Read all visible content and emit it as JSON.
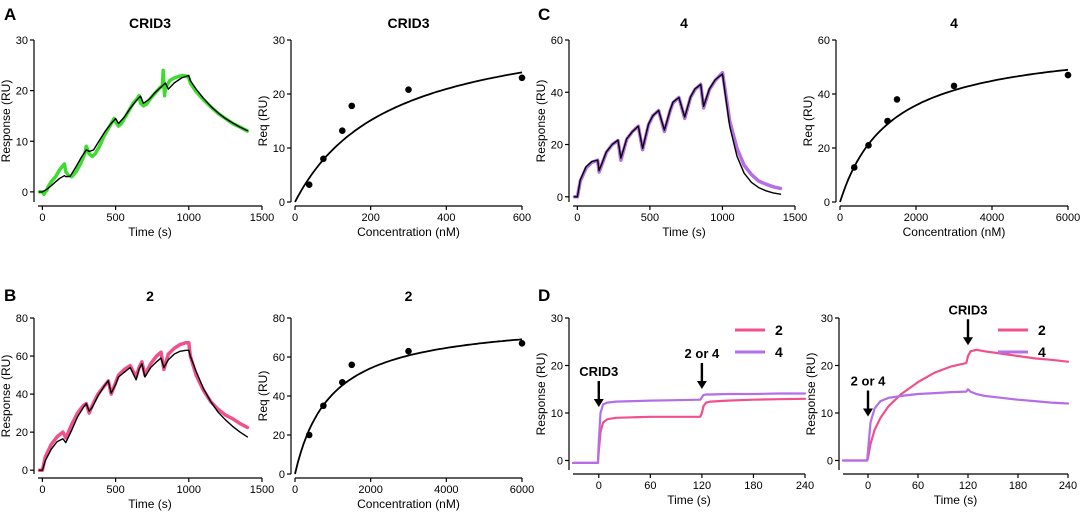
{
  "panel_letters": [
    "A",
    "B",
    "C",
    "D"
  ],
  "chart_data": [
    {
      "id": "A1",
      "type": "line",
      "panel": "A",
      "title": "CRID3",
      "xlabel": "Time (s)",
      "ylabel": "Response (RU)",
      "xlim": [
        -30,
        1500
      ],
      "ylim": [
        -2,
        30
      ],
      "xticks": [
        0,
        500,
        1000,
        1500
      ],
      "yticks": [
        0,
        10,
        20,
        30
      ],
      "series": [
        {
          "name": "data",
          "color": "#3ddc2e",
          "style": "thick",
          "x": [
            -20,
            0,
            10,
            20,
            30,
            40,
            60,
            90,
            120,
            150,
            160,
            180,
            200,
            230,
            260,
            290,
            300,
            320,
            340,
            360,
            390,
            420,
            450,
            480,
            490,
            500,
            520,
            540,
            560,
            590,
            620,
            650,
            660,
            670,
            690,
            710,
            740,
            770,
            800,
            820,
            825,
            830,
            835,
            840,
            870,
            900,
            930,
            960,
            990,
            1000,
            1010,
            1050,
            1100,
            1150,
            1200,
            1250,
            1300,
            1350,
            1400
          ],
          "y": [
            0,
            0,
            -0.5,
            0,
            0.3,
            1,
            2,
            3,
            4.5,
            5.5,
            4,
            3.2,
            3,
            4,
            5.5,
            7.5,
            9,
            7.5,
            7,
            7.5,
            9,
            11,
            12.5,
            14,
            14.5,
            13.8,
            13,
            13.5,
            14.5,
            16,
            17.5,
            18.5,
            19,
            17.5,
            17,
            17.3,
            18.5,
            19.5,
            20.5,
            21,
            24,
            21,
            19,
            20.5,
            22,
            22.5,
            22.8,
            23,
            22.8,
            22.5,
            21.5,
            19.8,
            18.2,
            16.8,
            15.5,
            14.5,
            13.5,
            12.8,
            12
          ]
        },
        {
          "name": "fit",
          "color": "#000000",
          "style": "thin",
          "x": [
            -20,
            0,
            30,
            60,
            90,
            120,
            150,
            160,
            190,
            230,
            270,
            300,
            320,
            350,
            390,
            430,
            470,
            500,
            520,
            560,
            600,
            640,
            670,
            690,
            730,
            770,
            810,
            840,
            860,
            900,
            950,
            1000,
            1010,
            1050,
            1100,
            1150,
            1200,
            1250,
            1300,
            1350,
            1400
          ],
          "y": [
            0,
            0,
            0.5,
            1.2,
            2,
            2.7,
            3.2,
            3,
            3.1,
            5,
            7,
            8.3,
            8,
            8.3,
            10.2,
            12,
            13.5,
            14.5,
            13.5,
            14.8,
            16.5,
            18,
            18.9,
            17.5,
            18.3,
            19.6,
            20.7,
            21.5,
            20.3,
            21.5,
            22.5,
            23,
            22,
            20.3,
            18.5,
            16.9,
            15.6,
            14.5,
            13.6,
            12.8,
            12.1
          ]
        }
      ]
    },
    {
      "id": "A2",
      "type": "scatter",
      "panel": "A",
      "title": "CRID3",
      "xlabel": "Concentration (nM)",
      "ylabel": "Req (RU)",
      "xlim": [
        0,
        600
      ],
      "ylim": [
        0,
        30
      ],
      "xticks": [
        0,
        200,
        400,
        600
      ],
      "yticks": [
        0,
        10,
        20,
        30
      ],
      "points": {
        "x": [
          37.5,
          75,
          125,
          150,
          300,
          600
        ],
        "y": [
          3.2,
          8,
          13.2,
          17.8,
          20.8,
          23
        ]
      },
      "fit": {
        "model": "steady-state",
        "Rmax": 34,
        "KD": 250
      }
    },
    {
      "id": "C1",
      "type": "line",
      "panel": "C",
      "title": "4",
      "xlabel": "Time (s)",
      "ylabel": "Response (RU)",
      "xlim": [
        -30,
        1500
      ],
      "ylim": [
        -2,
        60
      ],
      "xticks": [
        0,
        500,
        1000,
        1500
      ],
      "yticks": [
        0,
        20,
        40,
        60
      ],
      "series": [
        {
          "name": "data",
          "color": "#b36ee8",
          "style": "thick",
          "x": [
            -20,
            0,
            20,
            60,
            100,
            140,
            150,
            200,
            240,
            280,
            300,
            340,
            380,
            420,
            450,
            490,
            520,
            560,
            600,
            640,
            660,
            700,
            740,
            780,
            810,
            850,
            870,
            910,
            950,
            1000,
            1010,
            1050,
            1100,
            1150,
            1200,
            1250,
            1300,
            1350,
            1400
          ],
          "y": [
            0,
            0,
            6,
            11,
            13.2,
            14,
            9.5,
            17,
            20,
            21.5,
            14,
            22,
            25,
            27,
            18,
            27.5,
            31,
            33,
            25,
            33,
            36,
            38,
            30,
            38,
            41,
            43,
            34,
            41,
            44.5,
            47.5,
            44,
            29,
            18.5,
            12,
            8.5,
            6,
            4.8,
            3.8,
            3.2
          ]
        },
        {
          "name": "fit",
          "color": "#000000",
          "style": "thin",
          "x": [
            -20,
            0,
            20,
            60,
            100,
            140,
            150,
            200,
            240,
            280,
            300,
            340,
            380,
            420,
            450,
            490,
            520,
            560,
            600,
            640,
            660,
            700,
            740,
            780,
            810,
            850,
            870,
            910,
            950,
            1000,
            1010,
            1050,
            1100,
            1150,
            1200,
            1250,
            1300,
            1350,
            1400
          ],
          "y": [
            0,
            0,
            6.5,
            11.5,
            13.5,
            14,
            10,
            17.2,
            20,
            21.7,
            14.8,
            22.2,
            25,
            27,
            18.5,
            27.8,
            31,
            33,
            25.5,
            33.3,
            36.3,
            38,
            30.5,
            38.2,
            41.3,
            43,
            34.6,
            41.3,
            44.8,
            47,
            43,
            27,
            15.5,
            9,
            5.5,
            3.5,
            2.3,
            1.5,
            1
          ]
        }
      ]
    },
    {
      "id": "C2",
      "type": "scatter",
      "panel": "C",
      "title": "4",
      "xlabel": "Concentration (nM)",
      "ylabel": "Req (RU)",
      "xlim": [
        0,
        6000
      ],
      "ylim": [
        0,
        60
      ],
      "xticks": [
        0,
        2000,
        4000,
        6000
      ],
      "yticks": [
        0,
        20,
        40,
        60
      ],
      "points": {
        "x": [
          375,
          750,
          1250,
          1500,
          3000,
          6000
        ],
        "y": [
          12.8,
          21,
          30,
          38,
          43,
          47
        ]
      },
      "fit": {
        "model": "steady-state",
        "Rmax": 60,
        "KD": 1350
      }
    },
    {
      "id": "B1",
      "type": "line",
      "panel": "B",
      "title": "2",
      "xlabel": "Time (s)",
      "ylabel": "Response (RU)",
      "xlim": [
        -30,
        1500
      ],
      "ylim": [
        -2,
        80
      ],
      "xticks": [
        0,
        500,
        1000,
        1500
      ],
      "yticks": [
        0,
        20,
        40,
        60,
        80
      ],
      "series": [
        {
          "name": "data",
          "color": "#f0508c",
          "style": "thick",
          "x": [
            -20,
            0,
            20,
            60,
            100,
            140,
            160,
            200,
            240,
            280,
            300,
            320,
            340,
            380,
            420,
            450,
            470,
            500,
            520,
            560,
            600,
            640,
            660,
            680,
            700,
            740,
            780,
            810,
            830,
            860,
            900,
            940,
            980,
            1000,
            1010,
            1050,
            1100,
            1150,
            1200,
            1250,
            1300,
            1350,
            1400
          ],
          "y": [
            0,
            0,
            7,
            13.5,
            17.5,
            20,
            17,
            24,
            30,
            34,
            35,
            30,
            34,
            40,
            44,
            47,
            40,
            46,
            50,
            53,
            55,
            49,
            54,
            57,
            50,
            56,
            60,
            62,
            53,
            61,
            64,
            66,
            67,
            67,
            60,
            50,
            42,
            36,
            32,
            29,
            27,
            24.5,
            22.5
          ]
        },
        {
          "name": "fit",
          "color": "#000000",
          "style": "thin",
          "x": [
            -20,
            0,
            20,
            60,
            100,
            140,
            160,
            200,
            240,
            280,
            300,
            320,
            340,
            380,
            420,
            450,
            470,
            500,
            520,
            560,
            600,
            640,
            660,
            680,
            700,
            740,
            780,
            810,
            830,
            860,
            900,
            940,
            980,
            1000,
            1010,
            1050,
            1100,
            1150,
            1200,
            1250,
            1300,
            1350,
            1400
          ],
          "y": [
            0,
            0,
            5,
            11,
            15,
            16.5,
            14.5,
            21,
            28,
            33,
            35,
            31,
            33,
            39,
            44,
            47,
            40.5,
            45,
            49,
            51.5,
            54,
            47.5,
            53,
            56,
            49,
            54,
            57,
            59,
            54,
            58,
            61,
            62.5,
            63,
            63,
            60,
            52,
            43,
            36,
            30.5,
            26.5,
            23,
            20,
            17.5
          ]
        }
      ]
    },
    {
      "id": "B2",
      "type": "scatter",
      "panel": "B",
      "title": "2",
      "xlabel": "Concentration (nM)",
      "ylabel": "Req (RU)",
      "xlim": [
        0,
        6000
      ],
      "ylim": [
        0,
        80
      ],
      "xticks": [
        0,
        2000,
        4000,
        6000
      ],
      "yticks": [
        0,
        20,
        40,
        60,
        80
      ],
      "points": {
        "x": [
          375,
          750,
          1250,
          1500,
          3000,
          6000
        ],
        "y": [
          20,
          35,
          47,
          56,
          63,
          67
        ]
      },
      "fit": {
        "model": "steady-state",
        "Rmax": 80,
        "KD": 950
      }
    },
    {
      "id": "D1",
      "type": "line",
      "panel": "D",
      "title": "",
      "xlabel": "Time (s)",
      "ylabel": "Response (RU)",
      "xlim": [
        -30,
        240
      ],
      "ylim": [
        -2,
        30
      ],
      "xticks": [
        0,
        60,
        120,
        180,
        240
      ],
      "yticks": [
        0,
        10,
        20,
        30
      ],
      "annotations": [
        {
          "text": "CRID3",
          "x": 0
        },
        {
          "text": "2 or 4",
          "x": 120
        }
      ],
      "legend": [
        "2",
        "4"
      ],
      "series": [
        {
          "name": "2",
          "color": "#f0508c",
          "x": [
            -30,
            -1,
            0,
            2,
            5,
            10,
            20,
            40,
            60,
            90,
            118,
            120,
            122,
            125,
            130,
            150,
            180,
            210,
            240
          ],
          "y": [
            -0.5,
            -0.5,
            2,
            6,
            8,
            8.7,
            9,
            9.1,
            9.2,
            9.2,
            9.2,
            10,
            11.5,
            12.2,
            12.4,
            12.6,
            12.8,
            12.9,
            13
          ]
        },
        {
          "name": "4",
          "color": "#b36ee8",
          "x": [
            -30,
            -1,
            0,
            2,
            5,
            10,
            20,
            40,
            60,
            90,
            118,
            120,
            122,
            125,
            130,
            150,
            180,
            210,
            240
          ],
          "y": [
            -0.5,
            -0.5,
            4,
            10,
            11.8,
            12.2,
            12.4,
            12.5,
            12.6,
            12.7,
            12.8,
            13.3,
            13.8,
            13.9,
            13.9,
            14,
            14,
            14.1,
            14.1
          ]
        }
      ]
    },
    {
      "id": "D2",
      "type": "line",
      "panel": "D",
      "title": "",
      "xlabel": "Time (s)",
      "ylabel": "Response (RU)",
      "xlim": [
        -30,
        240
      ],
      "ylim": [
        -2,
        30
      ],
      "xticks": [
        0,
        60,
        120,
        180,
        240
      ],
      "yticks": [
        0,
        10,
        20,
        30
      ],
      "annotations": [
        {
          "text": "2 or 4",
          "x": 0
        },
        {
          "text": "CRID3",
          "x": 120
        }
      ],
      "legend": [
        "2",
        "4"
      ],
      "series": [
        {
          "name": "2",
          "color": "#f0508c",
          "x": [
            -30,
            -1,
            0,
            3,
            8,
            15,
            25,
            40,
            60,
            80,
            100,
            118,
            120,
            123,
            130,
            140,
            160,
            180,
            200,
            220,
            240
          ],
          "y": [
            0,
            0,
            0.5,
            3.5,
            6.5,
            9,
            11.5,
            14,
            16.5,
            18.5,
            19.8,
            20.5,
            22,
            23,
            23.3,
            23,
            22.5,
            22,
            21.5,
            21.2,
            20.8
          ]
        },
        {
          "name": "4",
          "color": "#b36ee8",
          "x": [
            -30,
            -1,
            0,
            3,
            8,
            15,
            25,
            40,
            60,
            80,
            100,
            118,
            120,
            123,
            130,
            140,
            160,
            180,
            200,
            220,
            240
          ],
          "y": [
            0,
            0,
            2,
            8,
            11,
            12.5,
            13.2,
            13.6,
            14,
            14.2,
            14.4,
            14.5,
            15,
            14.5,
            14,
            13.6,
            13.2,
            12.8,
            12.5,
            12.2,
            12
          ]
        }
      ]
    }
  ]
}
